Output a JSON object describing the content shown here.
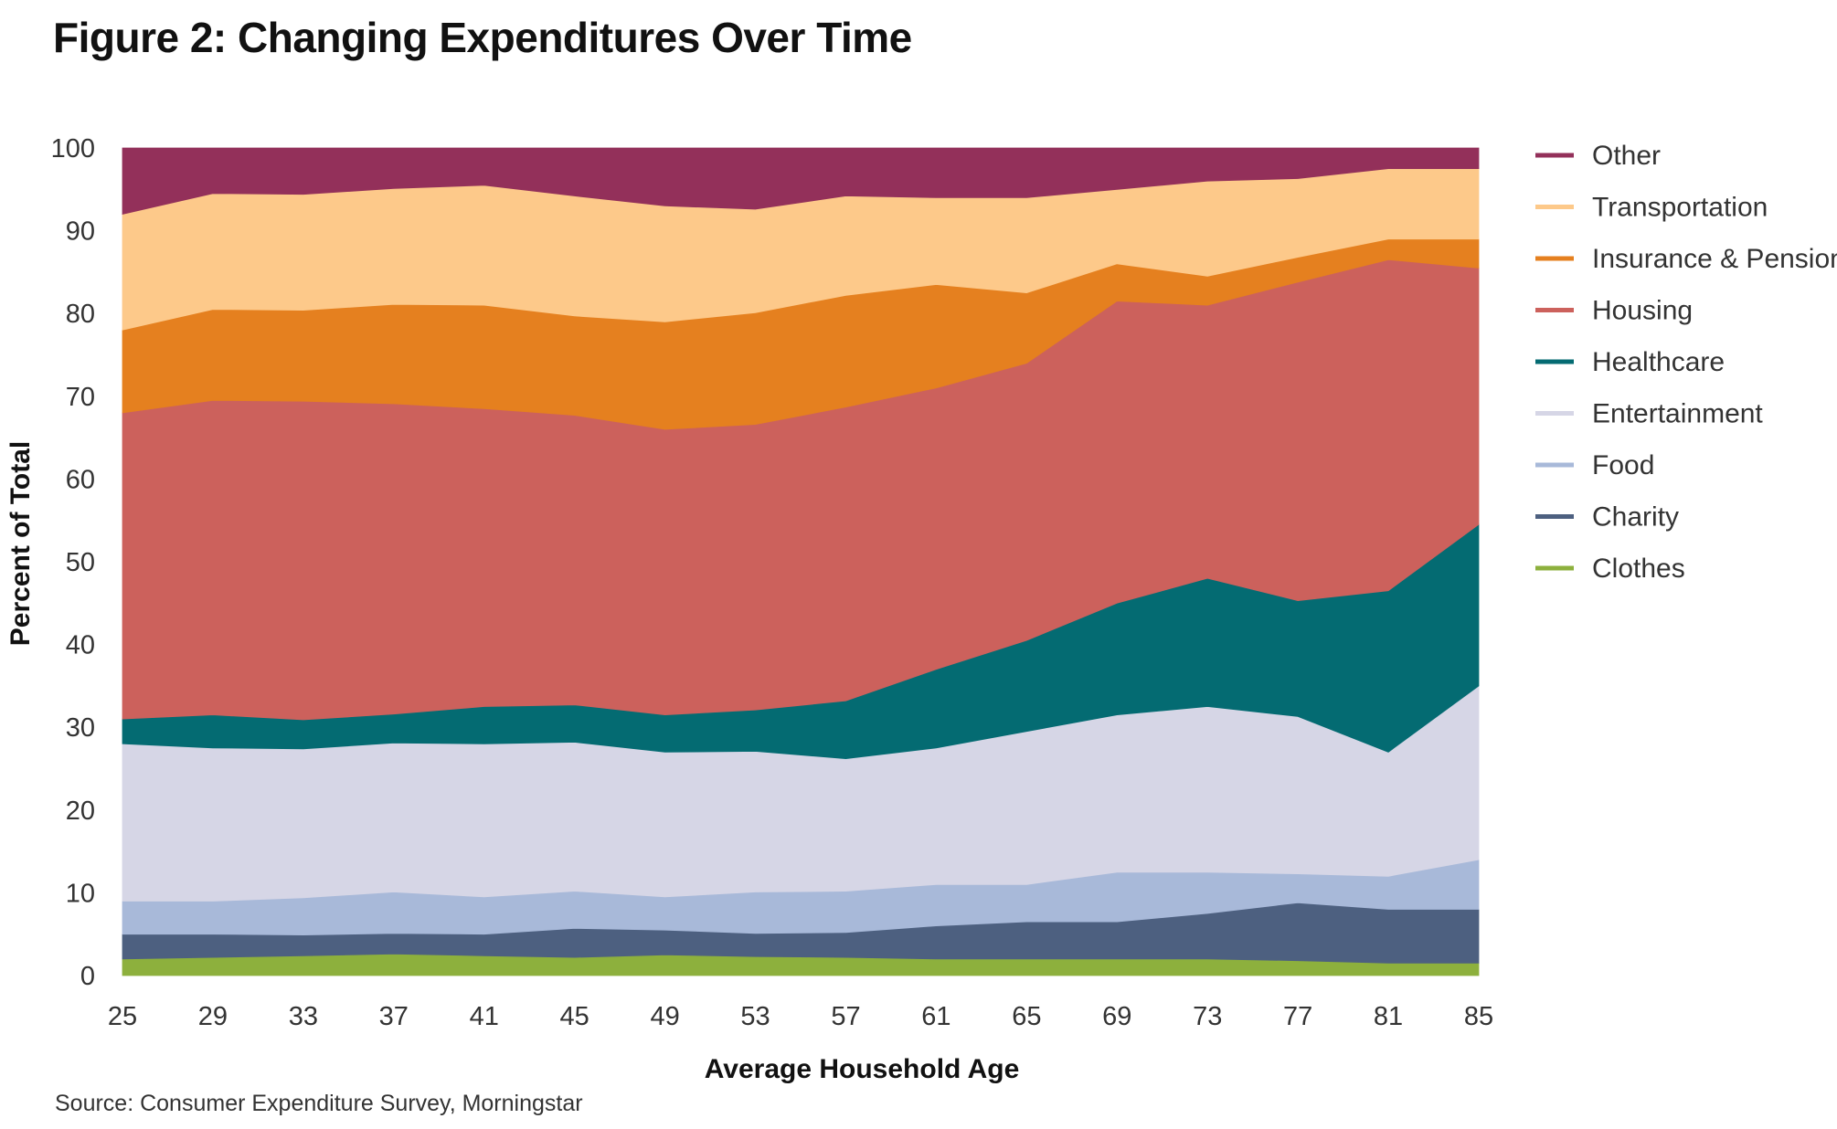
{
  "title": "Figure 2: Changing Expenditures Over Time",
  "source": "Source: Consumer Expenditure Survey, Morningstar",
  "chart_data": {
    "type": "area",
    "stacked": true,
    "title": "Figure 2: Changing Expenditures Over Time",
    "xlabel": "Average Household Age",
    "ylabel": "Percent of Total",
    "xlim": [
      25,
      85
    ],
    "ylim": [
      0,
      100
    ],
    "x_ticks": [
      25,
      29,
      33,
      37,
      41,
      45,
      49,
      53,
      57,
      61,
      65,
      69,
      73,
      77,
      81,
      85
    ],
    "y_ticks": [
      0,
      10,
      20,
      30,
      40,
      50,
      60,
      70,
      80,
      90,
      100
    ],
    "legend_position": "right",
    "x": [
      25,
      29,
      33,
      37,
      41,
      45,
      49,
      53,
      57,
      61,
      65,
      69,
      73,
      77,
      81,
      85
    ],
    "series": [
      {
        "name": "Clothes",
        "color": "#8db03d",
        "values": [
          2.0,
          2.2,
          2.4,
          2.6,
          2.4,
          2.2,
          2.5,
          2.3,
          2.2,
          2.0,
          2.0,
          2.0,
          2.0,
          1.8,
          1.5,
          1.5
        ]
      },
      {
        "name": "Charity",
        "color": "#4d6080",
        "values": [
          3.0,
          2.8,
          2.5,
          2.5,
          2.6,
          3.5,
          3.0,
          2.8,
          3.0,
          4.0,
          4.5,
          4.5,
          5.5,
          7.0,
          6.5,
          6.5
        ]
      },
      {
        "name": "Food",
        "color": "#a8b9d9",
        "values": [
          4.0,
          4.0,
          4.5,
          5.0,
          4.5,
          4.5,
          4.0,
          5.0,
          5.0,
          5.0,
          4.5,
          6.0,
          5.0,
          3.5,
          4.0,
          6.0
        ]
      },
      {
        "name": "Entertainment",
        "color": "#d6d6e6",
        "values": [
          19.0,
          18.5,
          18.0,
          18.0,
          18.5,
          18.0,
          17.5,
          17.0,
          16.0,
          16.5,
          18.5,
          19.0,
          20.0,
          19.0,
          15.0,
          21.0
        ]
      },
      {
        "name": "Healthcare",
        "color": "#046b72",
        "values": [
          3.0,
          4.0,
          3.5,
          3.5,
          4.5,
          4.5,
          4.5,
          5.0,
          7.0,
          9.5,
          11.0,
          13.5,
          15.5,
          14.0,
          19.5,
          19.5
        ]
      },
      {
        "name": "Housing",
        "color": "#cc615c",
        "values": [
          37.0,
          38.0,
          38.5,
          37.5,
          36.0,
          35.0,
          34.5,
          34.5,
          35.5,
          34.0,
          33.5,
          36.5,
          33.0,
          38.5,
          40.0,
          31.0
        ]
      },
      {
        "name": "Insurance & Pensions",
        "color": "#e5801f",
        "values": [
          10.0,
          11.0,
          11.0,
          12.0,
          12.5,
          12.0,
          13.0,
          13.5,
          13.5,
          12.5,
          8.5,
          4.5,
          3.5,
          3.0,
          2.5,
          3.5
        ]
      },
      {
        "name": "Transportation",
        "color": "#fdc98a",
        "values": [
          14.0,
          14.0,
          14.0,
          14.0,
          14.5,
          14.5,
          14.0,
          12.5,
          12.0,
          10.5,
          11.5,
          9.0,
          11.5,
          9.5,
          8.5,
          8.5
        ]
      },
      {
        "name": "Other",
        "color": "#93305a",
        "values": [
          8.0,
          5.5,
          5.6,
          4.9,
          4.5,
          5.8,
          7.0,
          7.4,
          5.8,
          6.0,
          6.0,
          5.0,
          4.0,
          3.7,
          2.5,
          2.5
        ]
      }
    ],
    "legend_order": [
      "Other",
      "Transportation",
      "Insurance & Pensions",
      "Housing",
      "Healthcare",
      "Entertainment",
      "Food",
      "Charity",
      "Clothes"
    ]
  }
}
